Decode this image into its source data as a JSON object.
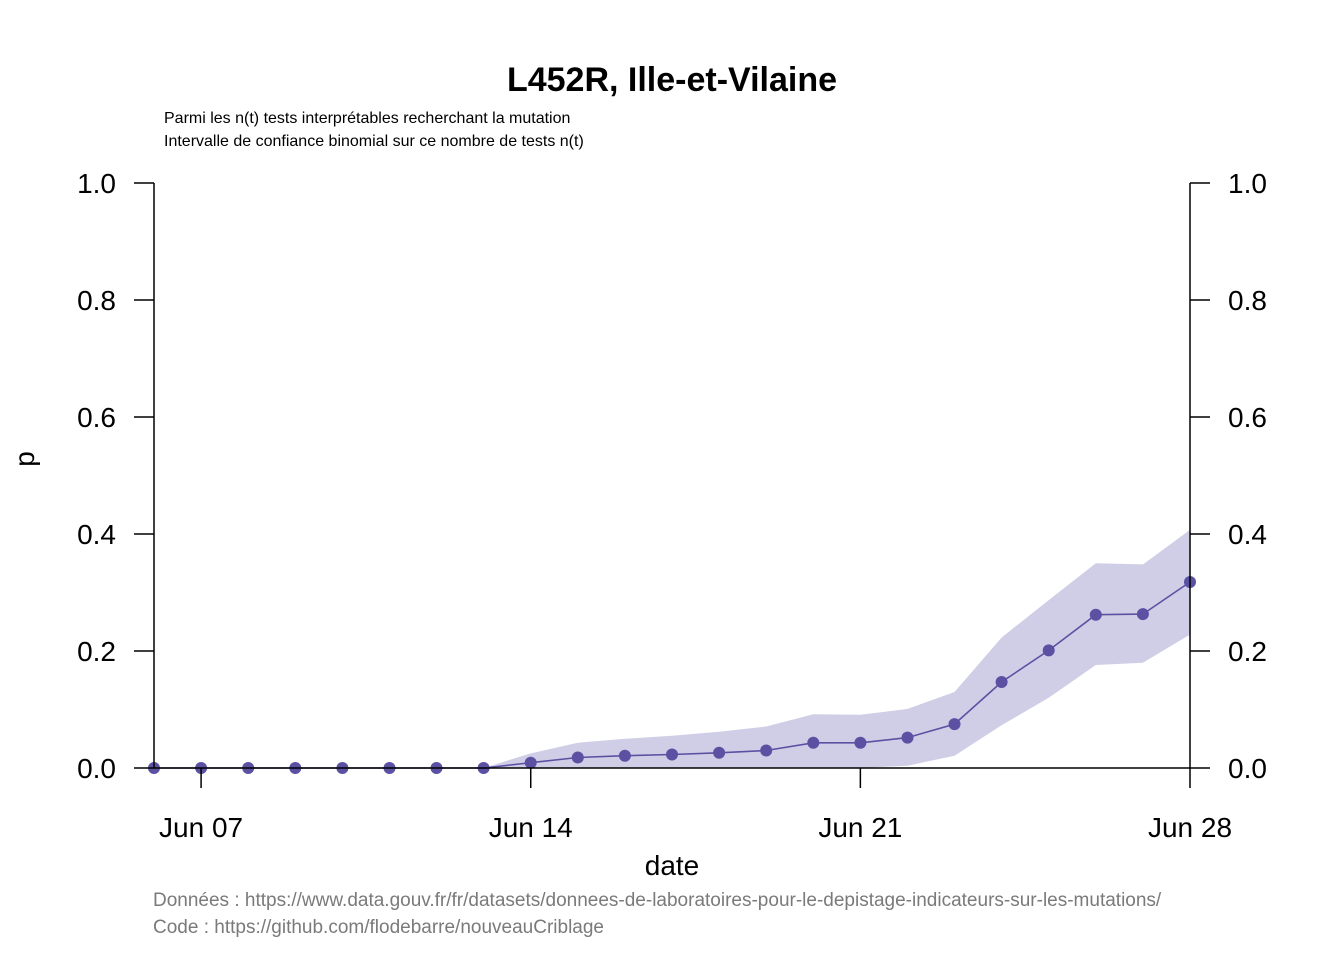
{
  "chart_data": {
    "type": "line",
    "title": "L452R, Ille-et-Vilaine",
    "subtitle": [
      "Parmi les n(t) tests interprétables recherchant la mutation",
      "Intervalle de confiance binomial sur ce nombre de tests n(t)"
    ],
    "xlabel": "date",
    "ylabel": "p",
    "ylim": [
      0,
      1
    ],
    "xlim": [
      "2021-06-06",
      "2021-06-28"
    ],
    "y_ticks": [
      "0.0",
      "0.2",
      "0.4",
      "0.6",
      "0.8",
      "1.0"
    ],
    "x_ticks": [
      {
        "date": "2021-06-07",
        "label": "Jun 07"
      },
      {
        "date": "2021-06-14",
        "label": "Jun 14"
      },
      {
        "date": "2021-06-21",
        "label": "Jun 21"
      },
      {
        "date": "2021-06-28",
        "label": "Jun 28"
      }
    ],
    "right_axis": true,
    "grid": false,
    "series": [
      {
        "color": "#5b51a3",
        "band_color": "#d0cee6",
        "x": [
          "2021-06-06",
          "2021-06-07",
          "2021-06-08",
          "2021-06-09",
          "2021-06-10",
          "2021-06-11",
          "2021-06-12",
          "2021-06-13",
          "2021-06-14",
          "2021-06-15",
          "2021-06-16",
          "2021-06-17",
          "2021-06-18",
          "2021-06-19",
          "2021-06-20",
          "2021-06-21",
          "2021-06-22",
          "2021-06-23",
          "2021-06-24",
          "2021-06-25",
          "2021-06-26",
          "2021-06-27",
          "2021-06-28"
        ],
        "values": [
          0,
          0,
          0,
          0,
          0,
          0,
          0,
          0,
          0.009,
          0.018,
          0.021,
          0.023,
          0.026,
          0.03,
          0.043,
          0.043,
          0.052,
          0.075,
          0.147,
          0.201,
          0.262,
          0.263,
          0.318
        ],
        "lower": [
          0,
          0,
          0,
          0,
          0,
          0,
          0,
          0,
          0,
          0,
          0,
          0,
          0,
          0,
          0,
          0,
          0.004,
          0.021,
          0.073,
          0.12,
          0.176,
          0.18,
          0.228
        ],
        "upper": [
          0,
          0,
          0,
          0,
          0,
          0,
          0,
          0,
          0.025,
          0.043,
          0.05,
          0.055,
          0.062,
          0.071,
          0.092,
          0.091,
          0.101,
          0.13,
          0.223,
          0.287,
          0.35,
          0.348,
          0.407
        ]
      }
    ]
  },
  "caption": {
    "data_source": "Données : https://www.data.gouv.fr/fr/datasets/donnees-de-laboratoires-pour-le-depistage-indicateurs-sur-les-mutations/",
    "code_source": "Code : https://github.com/flodebarre/nouveauCriblage"
  }
}
